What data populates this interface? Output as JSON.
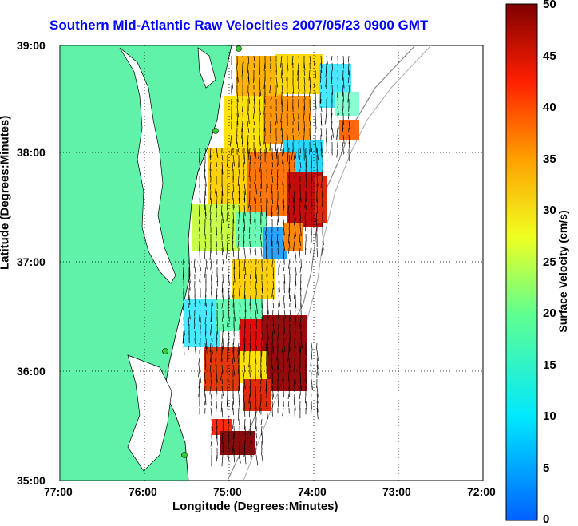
{
  "title": "Southern Mid-Atlantic Raw Velocities 2007/05/23 0900 GMT",
  "xlabel": "Longitude (Degrees:Minutes)",
  "ylabel": "Latitude (Degrees:Minutes)",
  "cbar_label": "Surface Velocity (cm/s)",
  "xticks": [
    "77:00",
    "76:00",
    "75:00",
    "74:00",
    "73:00",
    "72:00"
  ],
  "yticks": [
    "39:00",
    "38:00",
    "37:00",
    "36:00",
    "35:00"
  ],
  "cbar_ticks": [
    "50",
    "45",
    "40",
    "35",
    "30",
    "25",
    "20",
    "15",
    "10",
    "5",
    "0"
  ],
  "colors": {
    "land": "#5ff2a8",
    "title": "#0000ff",
    "grid": "#000000"
  }
}
